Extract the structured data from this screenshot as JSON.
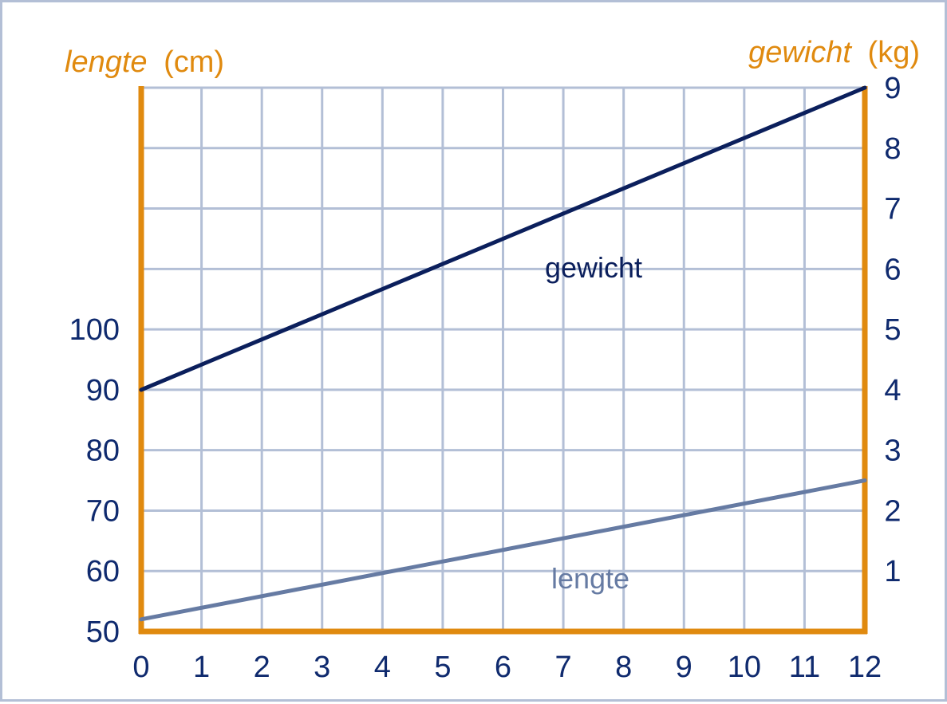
{
  "chart_data": {
    "type": "line",
    "x": [
      0,
      1,
      2,
      3,
      4,
      5,
      6,
      7,
      8,
      9,
      10,
      11,
      12
    ],
    "xlim": [
      0,
      12
    ],
    "left_axis": {
      "title_italic": "lengte",
      "title_unit": "(cm)",
      "ticks": [
        50,
        60,
        70,
        80,
        90,
        100
      ],
      "range": [
        50,
        140
      ]
    },
    "right_axis": {
      "title_italic": "gewicht",
      "title_unit": "(kg)",
      "ticks": [
        1,
        2,
        3,
        4,
        5,
        6,
        7,
        8,
        9
      ],
      "range": [
        0,
        9
      ]
    },
    "grid": true,
    "series": [
      {
        "name": "gewicht",
        "axis": "right",
        "x": [
          0,
          12
        ],
        "y": [
          4,
          9
        ],
        "color": "#0b1f5c"
      },
      {
        "name": "lengte",
        "axis": "left",
        "x": [
          0,
          12
        ],
        "y": [
          52,
          75
        ],
        "color": "#667ba3"
      }
    ],
    "colors": {
      "axis": "#e08a0f",
      "grid": "#b3bfd6",
      "tick_text": "#0f2a6e"
    }
  }
}
